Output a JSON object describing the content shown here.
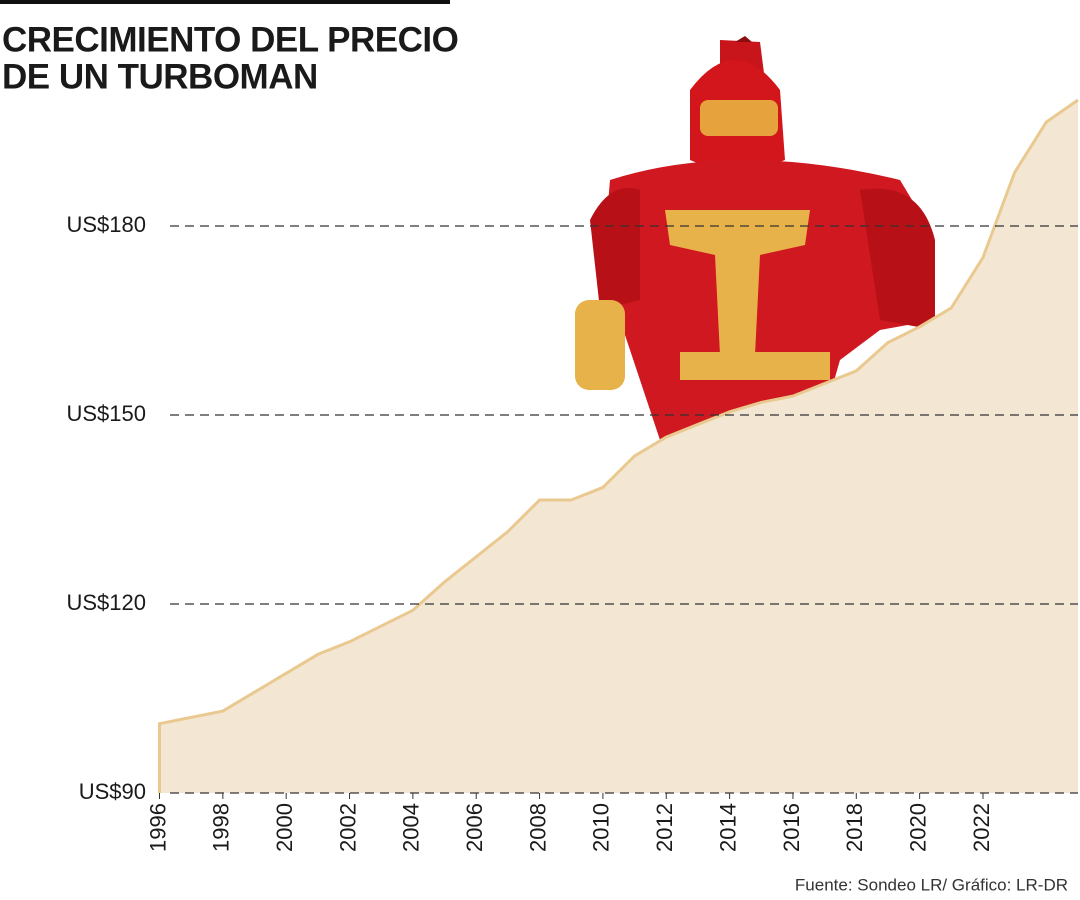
{
  "chart_data": {
    "type": "area",
    "title": [
      "CRECIMIENTO DEL PRECIO",
      "DE UN TURBOMAN"
    ],
    "source": "Fuente: Sondeo LR/ Gráfico: LR-DR",
    "x": [
      1996,
      1997,
      1998,
      1999,
      2000,
      2001,
      2002,
      2003,
      2004,
      2005,
      2006,
      2007,
      2008,
      2009,
      2010,
      2011,
      2012,
      2013,
      2014,
      2015,
      2016,
      2017,
      2018,
      2019,
      2020,
      2021,
      2022,
      2023,
      2024,
      2025
    ],
    "values": [
      101,
      102,
      103,
      106,
      109,
      112,
      114,
      116.5,
      119,
      123.5,
      127.5,
      131.5,
      136.5,
      136.5,
      138.5,
      143.5,
      146.5,
      148.5,
      150.5,
      152,
      153,
      155,
      157,
      161.5,
      164,
      167,
      175,
      188.5,
      196.5,
      200
    ],
    "color": "#f3e7d4",
    "line_color": "#e9c98f",
    "xlim": [
      1995.7,
      2025
    ],
    "ylim": [
      90,
      200
    ],
    "xticks": [
      1996,
      1998,
      2000,
      2002,
      2004,
      2006,
      2008,
      2010,
      2012,
      2014,
      2016,
      2018,
      2020,
      2022
    ],
    "yticks": [
      {
        "value": 90,
        "label": "US$90"
      },
      {
        "value": 120,
        "label": "US$120"
      },
      {
        "value": 150,
        "label": "US$150"
      },
      {
        "value": 180,
        "label": "US$180"
      }
    ],
    "grid": true
  }
}
